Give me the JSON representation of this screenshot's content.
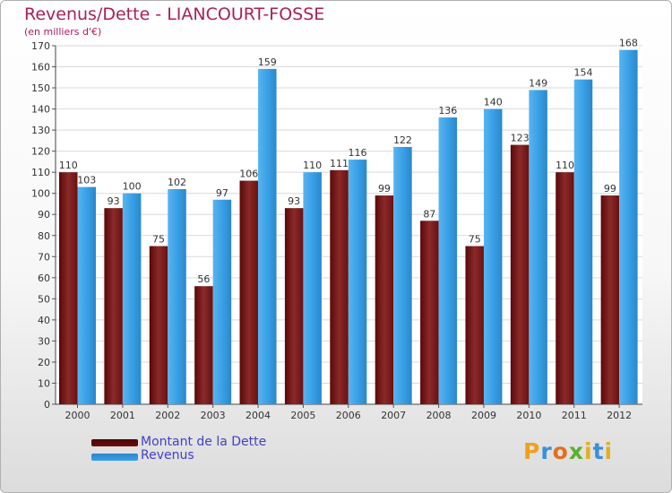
{
  "header": {
    "title": "Revenus/Dette - LIANCOURT-FOSSE",
    "subtitle": "(en milliers d'€)"
  },
  "legend": [
    {
      "label": "Montant de la Dette",
      "color": "#6a0d0d"
    },
    {
      "label": "Revenus",
      "color": "#3aa0e6"
    }
  ],
  "brand": {
    "text": "Proxiti"
  },
  "chart_data": {
    "type": "bar",
    "title": "Revenus/Dette - LIANCOURT-FOSSE",
    "ylabel": "(en milliers d'€)",
    "xlabel": "",
    "categories": [
      "2000",
      "2001",
      "2002",
      "2003",
      "2004",
      "2005",
      "2006",
      "2007",
      "2008",
      "2009",
      "2010",
      "2011",
      "2012"
    ],
    "ylim": [
      0,
      170
    ],
    "yticks": [
      0,
      10,
      20,
      30,
      40,
      50,
      60,
      70,
      80,
      90,
      100,
      110,
      120,
      130,
      140,
      150,
      160,
      170
    ],
    "grid": true,
    "legend_position": "bottom-left",
    "series": [
      {
        "name": "Montant de la Dette",
        "color": "#6a0d0d",
        "values": [
          110,
          93,
          75,
          56,
          106,
          93,
          111,
          99,
          87,
          75,
          123,
          110,
          99
        ]
      },
      {
        "name": "Revenus",
        "color": "#3aa0e6",
        "values": [
          103,
          100,
          102,
          97,
          159,
          110,
          116,
          122,
          136,
          140,
          149,
          154,
          168
        ]
      }
    ]
  }
}
